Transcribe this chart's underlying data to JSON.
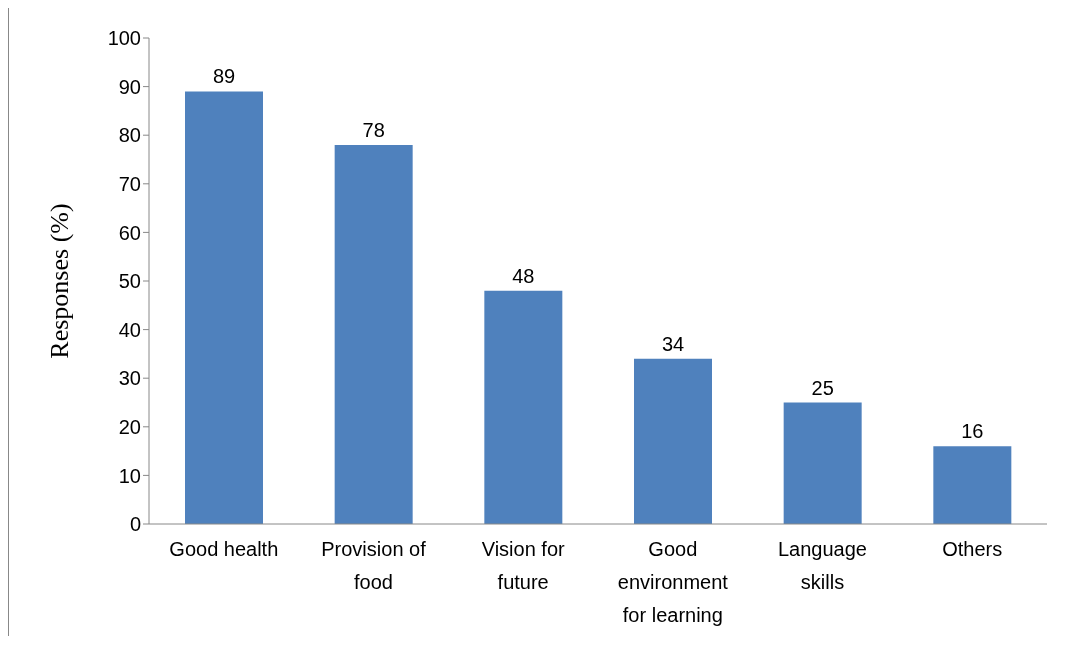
{
  "chart_data": {
    "type": "bar",
    "ylabel": "Responses (%)",
    "categories": [
      "Good health",
      "Provision of food",
      "Vision for future",
      "Good environment for learning",
      "Language skills",
      "Others"
    ],
    "values": [
      89,
      78,
      48,
      34,
      25,
      16
    ],
    "color": "#4f81bd",
    "ylim": [
      0,
      100
    ],
    "yticks": [
      0,
      10,
      20,
      30,
      40,
      50,
      60,
      70,
      80,
      90,
      100
    ],
    "grid": false,
    "data_labels": true
  }
}
